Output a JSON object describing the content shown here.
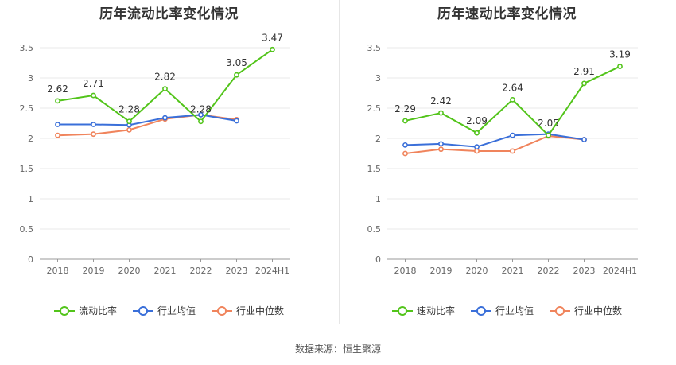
{
  "chart_data": [
    {
      "type": "line",
      "title": "历年流动比率变化情况",
      "categories": [
        "2018",
        "2019",
        "2020",
        "2021",
        "2022",
        "2023",
        "2024H1"
      ],
      "ylim": [
        0,
        3.5
      ],
      "yticks": [
        "0",
        "0.5",
        "1",
        "1.5",
        "2",
        "2.5",
        "3",
        "3.5"
      ],
      "grid": true,
      "legend_position": "bottom",
      "series": [
        {
          "name": "流动比率",
          "color": "#52c41a",
          "values": [
            2.62,
            2.71,
            2.28,
            2.82,
            2.28,
            3.05,
            3.47
          ],
          "labels": [
            "2.62",
            "2.71",
            "2.28",
            "2.82",
            "2.28",
            "3.05",
            "3.47"
          ]
        },
        {
          "name": "行业均值",
          "color": "#3a6fd9",
          "values": [
            2.23,
            2.23,
            2.22,
            2.34,
            2.39,
            2.29,
            null
          ]
        },
        {
          "name": "行业中位数",
          "color": "#f0845c",
          "values": [
            2.05,
            2.07,
            2.14,
            2.32,
            2.39,
            2.31,
            null
          ]
        }
      ]
    },
    {
      "type": "line",
      "title": "历年速动比率变化情况",
      "categories": [
        "2018",
        "2019",
        "2020",
        "2021",
        "2022",
        "2023",
        "2024H1"
      ],
      "ylim": [
        0,
        3.5
      ],
      "yticks": [
        "0",
        "0.5",
        "1",
        "1.5",
        "2",
        "2.5",
        "3",
        "3.5"
      ],
      "grid": true,
      "legend_position": "bottom",
      "series": [
        {
          "name": "速动比率",
          "color": "#52c41a",
          "values": [
            2.29,
            2.42,
            2.09,
            2.64,
            2.05,
            2.91,
            3.19
          ],
          "labels": [
            "2.29",
            "2.42",
            "2.09",
            "2.64",
            "2.05",
            "2.91",
            "3.19"
          ]
        },
        {
          "name": "行业均值",
          "color": "#3a6fd9",
          "values": [
            1.89,
            1.91,
            1.86,
            2.05,
            2.07,
            1.98,
            null
          ]
        },
        {
          "name": "行业中位数",
          "color": "#f0845c",
          "values": [
            1.75,
            1.82,
            1.79,
            1.79,
            2.04,
            1.98,
            null
          ]
        }
      ]
    }
  ],
  "footer": {
    "source": "数据来源：恒生聚源"
  }
}
